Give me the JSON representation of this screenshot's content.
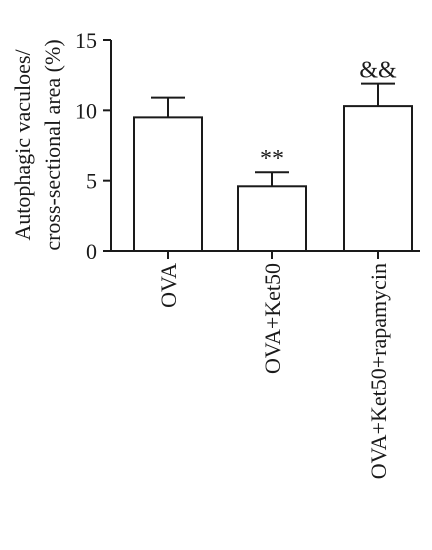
{
  "chart_data": {
    "type": "bar",
    "ylabel_lines": [
      "Autophagic vaculoes/",
      "cross-sectional area (%)"
    ],
    "categories": [
      "OVA",
      "OVA+Ket50",
      "OVA+Ket50+rapamycin"
    ],
    "values": [
      9.5,
      4.6,
      10.3
    ],
    "errors": [
      1.4,
      1.0,
      1.6
    ],
    "annotations": [
      "",
      "**",
      "&&"
    ],
    "ylim": [
      0,
      15
    ],
    "yticks": [
      "0",
      "5",
      "10",
      "15"
    ],
    "grid": false,
    "bar_fill": "#ffffff",
    "stroke_color": "#1a1a1a"
  }
}
